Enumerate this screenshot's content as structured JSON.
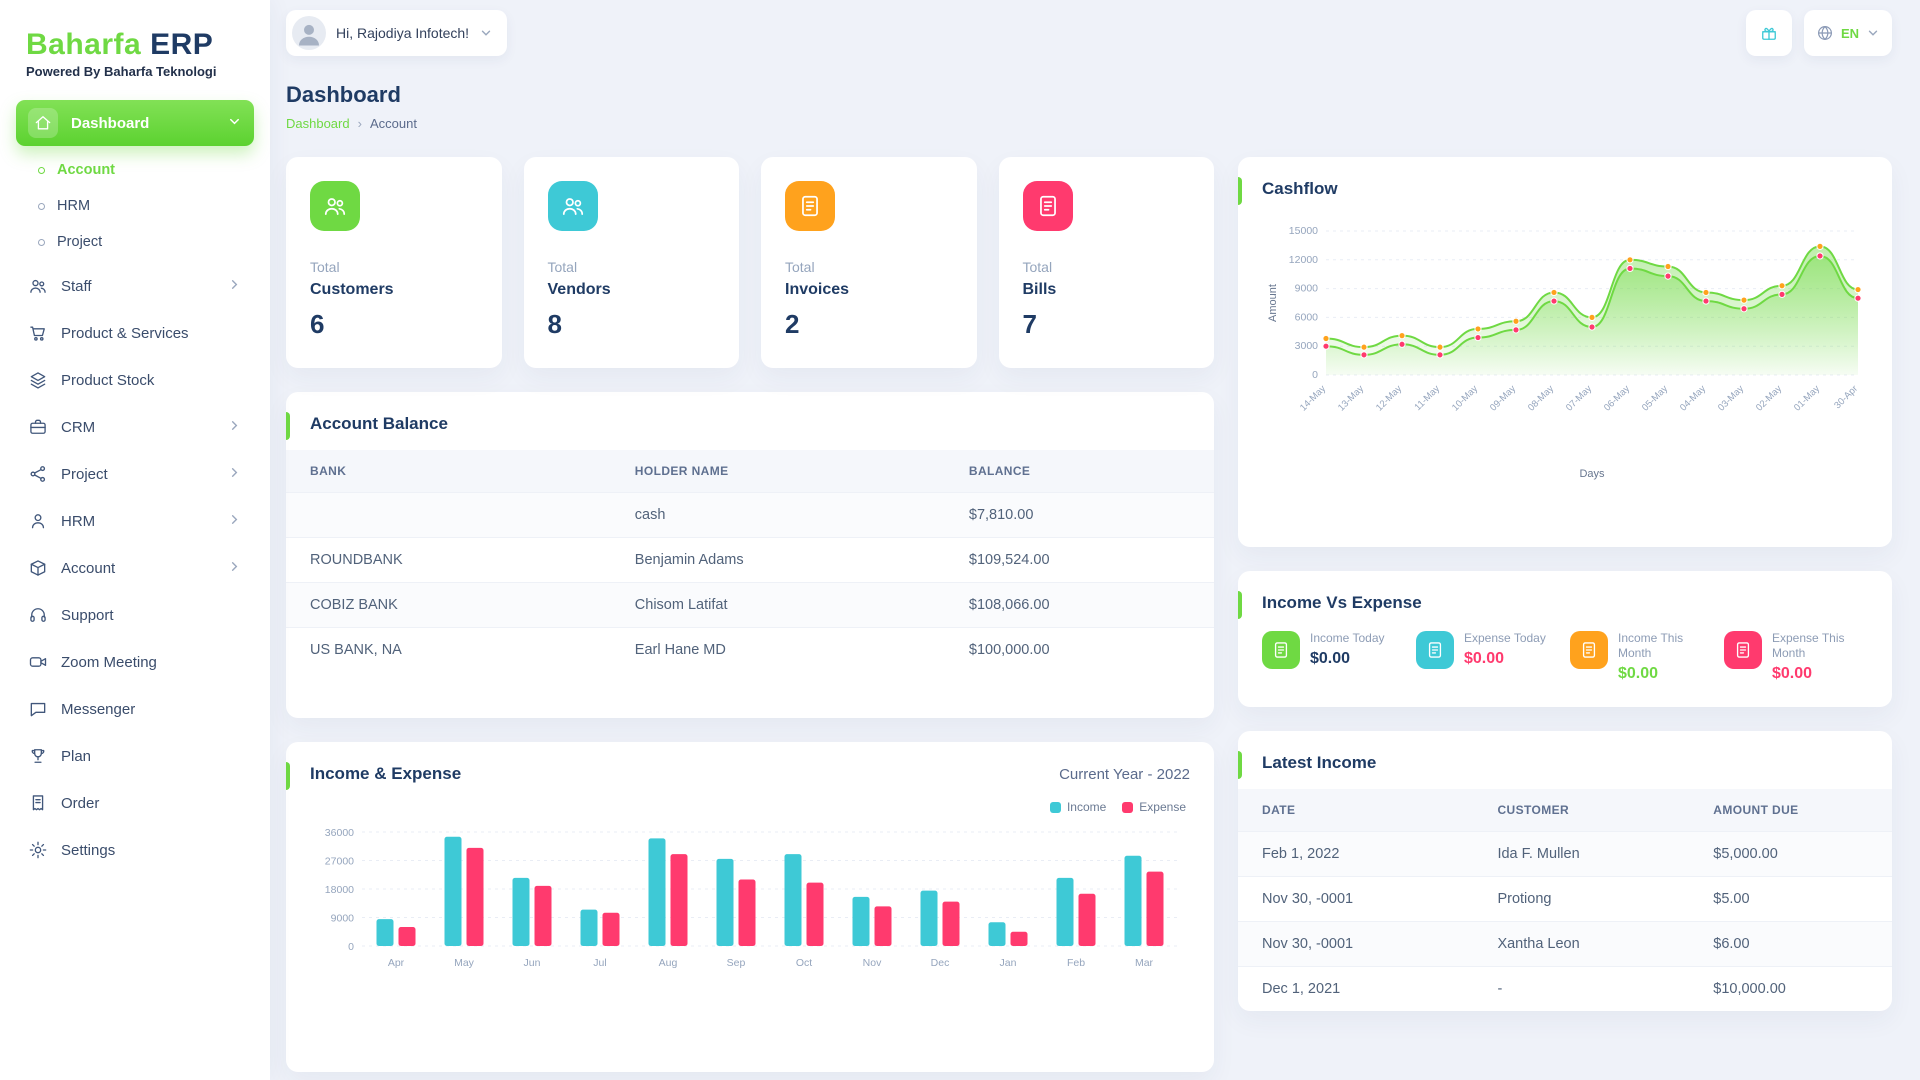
{
  "brand": {
    "name_primary": "Baharfa",
    "name_secondary": "ERP",
    "tagline": "Powered By Baharfa Teknologi"
  },
  "topbar": {
    "greeting": "Hi, Rajodiya Infotech!",
    "language": "EN"
  },
  "colors": {
    "primary_green": "#6fd943",
    "cyan": "#3ec9d6",
    "orange": "#ffa21d",
    "pink": "#ff3a6e",
    "navy": "#1f3b64"
  },
  "sidebar": {
    "items": [
      {
        "label": "Dashboard",
        "icon": "home-icon"
      },
      {
        "label": "Account",
        "icon": "dot-icon"
      },
      {
        "label": "HRM",
        "icon": "dot-icon"
      },
      {
        "label": "Project",
        "icon": "dot-icon"
      },
      {
        "label": "Staff",
        "icon": "users-icon"
      },
      {
        "label": "Product & Services",
        "icon": "cart-icon"
      },
      {
        "label": "Product Stock",
        "icon": "layers-icon"
      },
      {
        "label": "CRM",
        "icon": "briefcase-icon"
      },
      {
        "label": "Project",
        "icon": "share-icon"
      },
      {
        "label": "HRM",
        "icon": "user-icon"
      },
      {
        "label": "Account",
        "icon": "cube-icon"
      },
      {
        "label": "Support",
        "icon": "headset-icon"
      },
      {
        "label": "Zoom Meeting",
        "icon": "video-icon"
      },
      {
        "label": "Messenger",
        "icon": "chat-icon"
      },
      {
        "label": "Plan",
        "icon": "trophy-icon"
      },
      {
        "label": "Order",
        "icon": "receipt-icon"
      },
      {
        "label": "Settings",
        "icon": "gear-icon"
      }
    ]
  },
  "page": {
    "title": "Dashboard",
    "breadcrumb": [
      "Dashboard",
      "Account"
    ]
  },
  "stats": [
    {
      "prefix": "Total",
      "label": "Customers",
      "value": "6",
      "color": "#6fd943",
      "icon": "users-icon"
    },
    {
      "prefix": "Total",
      "label": "Vendors",
      "value": "8",
      "color": "#3ec9d6",
      "icon": "users-icon"
    },
    {
      "prefix": "Total",
      "label": "Invoices",
      "value": "2",
      "color": "#ffa21d",
      "icon": "invoice-icon"
    },
    {
      "prefix": "Total",
      "label": "Bills",
      "value": "7",
      "color": "#ff3a6e",
      "icon": "bill-icon"
    }
  ],
  "account_balance": {
    "title": "Account Balance",
    "headers": [
      "Bank",
      "Holder Name",
      "Balance"
    ],
    "rows": [
      {
        "bank": "",
        "holder": "cash",
        "balance": "$7,810.00"
      },
      {
        "bank": "ROUNDBANK",
        "holder": "Benjamin Adams",
        "balance": "$109,524.00"
      },
      {
        "bank": "COBIZ BANK",
        "holder": "Chisom Latifat",
        "balance": "$108,066.00"
      },
      {
        "bank": "US BANK, NA",
        "holder": "Earl Hane MD",
        "balance": "$100,000.00"
      }
    ]
  },
  "income_expense_card": {
    "title": "Income & Expense",
    "subtitle": "Current Year - 2022"
  },
  "cashflow_card": {
    "title": "Cashflow"
  },
  "income_vs_expense": {
    "title": "Income Vs Expense",
    "items": [
      {
        "label": "Income Today",
        "value": "$0.00",
        "value_color": "#1f3b64",
        "icon_color": "#6fd943",
        "icon": "money-icon"
      },
      {
        "label": "Expense Today",
        "value": "$0.00",
        "value_color": "#ff3a6e",
        "icon_color": "#3ec9d6",
        "icon": "money-icon"
      },
      {
        "label": "Income This Month",
        "value": "$0.00",
        "value_color": "#6fd943",
        "icon_color": "#ffa21d",
        "icon": "money-icon"
      },
      {
        "label": "Expense This Month",
        "value": "$0.00",
        "value_color": "#ff3a6e",
        "icon_color": "#ff3a6e",
        "icon": "money-icon"
      }
    ]
  },
  "latest_income": {
    "title": "Latest Income",
    "headers": [
      "Date",
      "Customer",
      "Amount Due"
    ],
    "rows": [
      {
        "date": "Feb 1, 2022",
        "customer": "Ida F. Mullen",
        "amount": "$5,000.00"
      },
      {
        "date": "Nov 30, -0001",
        "customer": "Protiong",
        "amount": "$5.00"
      },
      {
        "date": "Nov 30, -0001",
        "customer": "Xantha Leon",
        "amount": "$6.00"
      },
      {
        "date": "Dec 1, 2021",
        "customer": "-",
        "amount": "$10,000.00"
      }
    ]
  },
  "chart_data": [
    {
      "type": "area",
      "title": "Cashflow",
      "xlabel": "Days",
      "ylabel": "Amount",
      "x": [
        "14-May",
        "13-May",
        "12-May",
        "11-May",
        "10-May",
        "09-May",
        "08-May",
        "07-May",
        "06-May",
        "05-May",
        "04-May",
        "03-May",
        "02-May",
        "01-May",
        "30-Apr"
      ],
      "series": [
        {
          "name": "Income",
          "color": "#ffa21d",
          "values": [
            3800,
            2900,
            4100,
            2900,
            4800,
            5600,
            8600,
            6000,
            12000,
            11300,
            8600,
            7800,
            9300,
            13400,
            8900
          ]
        },
        {
          "name": "Expense",
          "color": "#ff3a6e",
          "values": [
            3000,
            2100,
            3200,
            2100,
            3900,
            4700,
            7700,
            5000,
            11100,
            10300,
            7700,
            6900,
            8400,
            12400,
            8000
          ]
        }
      ],
      "line_color": "#6fd943",
      "ylim": [
        0,
        15000
      ],
      "yticks": [
        0,
        3000,
        6000,
        9000,
        12000,
        15000
      ],
      "grid": true,
      "legend_position": "none"
    },
    {
      "type": "bar",
      "title": "Income & Expense",
      "subtitle": "Current Year - 2022",
      "categories": [
        "Apr",
        "May",
        "Jun",
        "Jul",
        "Aug",
        "Sep",
        "Oct",
        "Nov",
        "Dec",
        "Jan",
        "Feb",
        "Mar"
      ],
      "series": [
        {
          "name": "Income",
          "color": "#3ec9d6",
          "values": [
            8500,
            34500,
            21500,
            11500,
            34000,
            27500,
            29000,
            15500,
            17500,
            7500,
            21500,
            28500
          ]
        },
        {
          "name": "Expense",
          "color": "#ff3a6e",
          "values": [
            6000,
            31000,
            19000,
            10500,
            29000,
            21000,
            20000,
            12500,
            14000,
            4500,
            16500,
            23500
          ]
        }
      ],
      "xlabel": "",
      "ylabel": "",
      "ylim": [
        0,
        36000
      ],
      "yticks": [
        0,
        9000,
        18000,
        27000,
        36000
      ],
      "grid": true,
      "legend_position": "top-right"
    }
  ]
}
